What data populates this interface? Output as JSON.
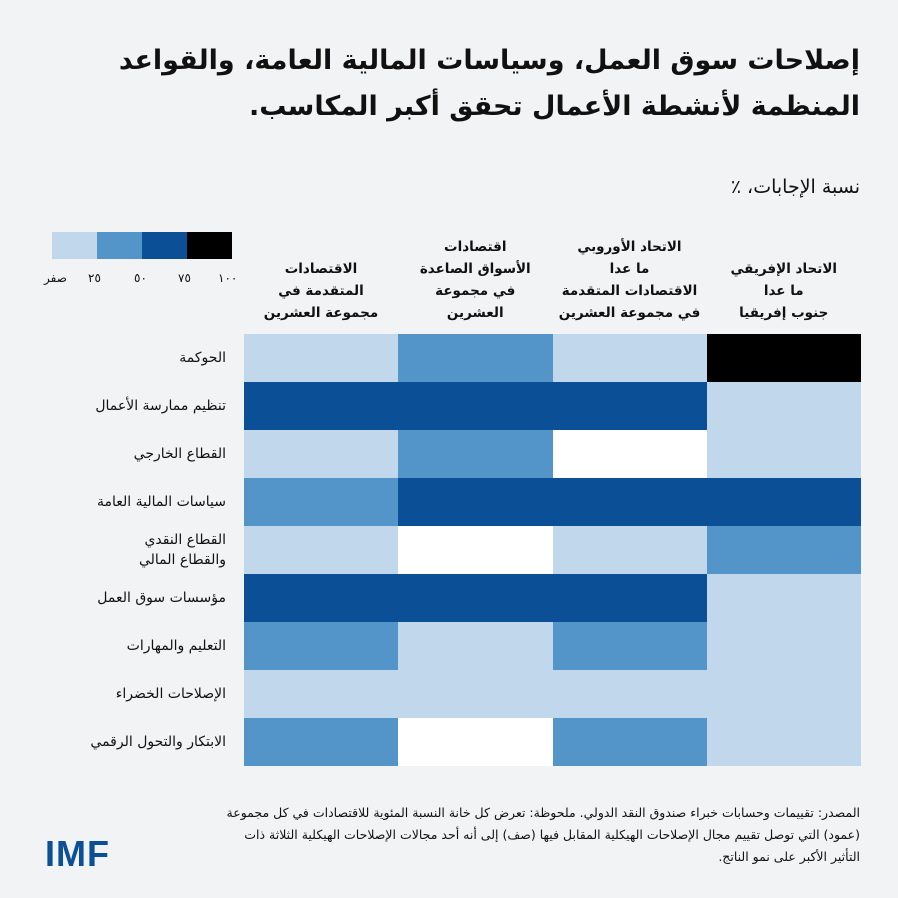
{
  "title": "إصلاحات سوق العمل، وسياسات المالية العامة، والقواعد المنظمة لأنشطة الأعمال تحقق أكبر المكاسب.",
  "subtitle": "نسبة الإجابات، ٪",
  "legend": {
    "colors": [
      "#c0d7ec",
      "#5394c9",
      "#0b4f96",
      "#000000"
    ],
    "ticks": [
      "صفر",
      "٢٥",
      "٥٠",
      "٧٥",
      "١٠٠"
    ]
  },
  "columns": [
    {
      "lines": [
        "الاقتصادات",
        "المتقدمة في",
        "مجموعة العشرين"
      ]
    },
    {
      "lines": [
        "اقتصادات",
        "الأسواق الصاعدة",
        "في مجموعة",
        "العشرين"
      ]
    },
    {
      "lines": [
        "الاتحاد الأوروبي",
        "ما عدا",
        "الاقتصادات المتقدمة",
        "في مجموعة العشرين"
      ]
    },
    {
      "lines": [
        "الاتحاد الإفريقي",
        "ما عدا",
        "جنوب إفريقيا"
      ]
    }
  ],
  "rows": [
    {
      "label": [
        "الحوكمة"
      ]
    },
    {
      "label": [
        "تنظيم ممارسة الأعمال"
      ]
    },
    {
      "label": [
        "القطاع الخارجي"
      ]
    },
    {
      "label": [
        "سياسات المالية العامة"
      ]
    },
    {
      "label": [
        "القطاع النقدي",
        "والقطاع المالي"
      ]
    },
    {
      "label": [
        "مؤسسات سوق العمل"
      ]
    },
    {
      "label": [
        "التعليم والمهارات"
      ]
    },
    {
      "label": [
        "الإصلاحات الخضراء"
      ]
    },
    {
      "label": [
        "الابتكار والتحول الرقمي"
      ]
    }
  ],
  "chart_data": {
    "type": "heatmap",
    "title": "إصلاحات سوق العمل، وسياسات المالية العامة، والقواعد المنظمة لأنشطة الأعمال تحقق أكبر المكاسب.",
    "subtitle": "نسبة الإجابات، ٪",
    "x_categories": [
      "الاقتصادات المتقدمة في مجموعة العشرين",
      "اقتصادات الأسواق الصاعدة في مجموعة العشرين",
      "الاتحاد الأوروبي ما عدا الاقتصادات المتقدمة في مجموعة العشرين",
      "الاتحاد الإفريقي ما عدا جنوب إفريقيا"
    ],
    "y_categories": [
      "الحوكمة",
      "تنظيم ممارسة الأعمال",
      "القطاع الخارجي",
      "سياسات المالية العامة",
      "القطاع النقدي والقطاع المالي",
      "مؤسسات سوق العمل",
      "التعليم والمهارات",
      "الإصلاحات الخضراء",
      "الابتكار والتحول الرقمي"
    ],
    "bins": [
      "0",
      "0-25",
      "25-50",
      "50-75",
      "75-100"
    ],
    "bin_colors": [
      "#ffffff",
      "#c0d7ec",
      "#5394c9",
      "#0b4f96",
      "#000000"
    ],
    "values_bin_index": [
      [
        1,
        2,
        1,
        4
      ],
      [
        3,
        3,
        3,
        1
      ],
      [
        1,
        2,
        0,
        1
      ],
      [
        2,
        3,
        3,
        3
      ],
      [
        1,
        0,
        1,
        2
      ],
      [
        3,
        3,
        3,
        1
      ],
      [
        2,
        1,
        2,
        1
      ],
      [
        1,
        1,
        1,
        1
      ],
      [
        2,
        0,
        2,
        1
      ]
    ],
    "legend": {
      "ticks": [
        0,
        25,
        50,
        75,
        100
      ],
      "position": "top-left"
    }
  },
  "footer": "المصدر: تقييمات وحسابات خبراء صندوق النقد الدولي. ملحوظة: تعرض كل خانة النسبة المئوية للاقتصادات في كل مجموعة (عمود) التي توصل تقييم مجال الإصلاحات الهيكلية المقابل فيها (صف) إلى أنه أحد مجالات الإصلاحات الهيكلية الثلاثة ذات التأثير الأكبر على نمو الناتج.",
  "logo": "IMF"
}
